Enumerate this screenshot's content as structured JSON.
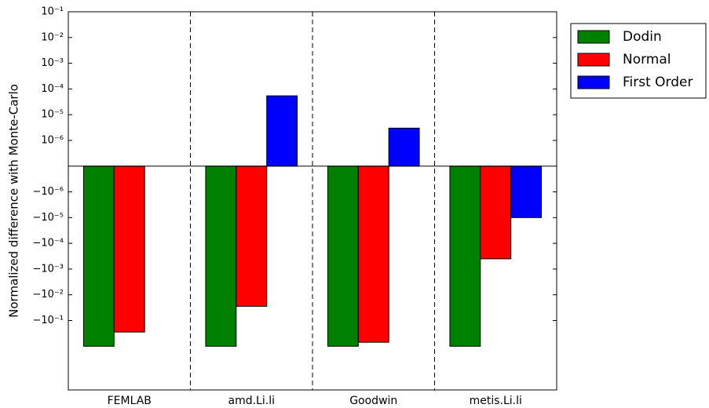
{
  "chart_data": {
    "type": "bar",
    "y_label": "Normalized difference with Monte-Carlo",
    "y_scale": "symlog",
    "linthresh": 1e-06,
    "categories": [
      "FEMLAB",
      "amd.Li.li",
      "Goodwin",
      "metis.Li.li"
    ],
    "series": [
      {
        "name": "Dodin",
        "color": "#008000",
        "values": [
          -1,
          -1,
          -1,
          -1
        ]
      },
      {
        "name": "Normal",
        "color": "#ff0000",
        "values": [
          -0.28,
          -0.028,
          -0.7,
          -0.0004
        ]
      },
      {
        "name": "First Order",
        "color": "#0000ff",
        "values": [
          0,
          5.4e-05,
          3e-06,
          -1e-05
        ]
      }
    ],
    "ylim": [
      -50,
      0.1
    ],
    "yticks": [
      {
        "value": 0.1,
        "label": "10⁻¹"
      },
      {
        "value": 0.01,
        "label": "10⁻²"
      },
      {
        "value": 0.001,
        "label": "10⁻³"
      },
      {
        "value": 0.0001,
        "label": "10⁻⁴"
      },
      {
        "value": 1e-05,
        "label": "10⁻⁵"
      },
      {
        "value": 1e-06,
        "label": "10⁻⁶"
      },
      {
        "value": -1e-06,
        "label": "−10⁻⁶"
      },
      {
        "value": -1e-05,
        "label": "−10⁻⁵"
      },
      {
        "value": -0.0001,
        "label": "−10⁻⁴"
      },
      {
        "value": -0.001,
        "label": "−10⁻³"
      },
      {
        "value": -0.01,
        "label": "−10⁻²"
      },
      {
        "value": -0.1,
        "label": "−10⁻¹"
      }
    ],
    "legend": "outside-upper-right"
  }
}
